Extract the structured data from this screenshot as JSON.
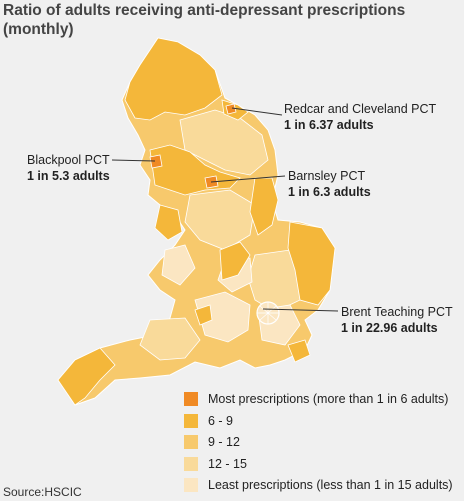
{
  "title": "Ratio of adults receiving anti-depressant prescriptions (monthly)",
  "colors": {
    "most": "#f08a24",
    "band_6_9": "#f4b73a",
    "band_9_12": "#f7c96c",
    "band_12_15": "#f9da9a",
    "least": "#fbe6c2",
    "border": "#ffffff",
    "leader": "#333333"
  },
  "callouts": [
    {
      "name": "Redcar and Cleveland PCT",
      "value": "1 in 6.37 adults"
    },
    {
      "name": "Blackpool PCT",
      "value": "1 in 5.3 adults"
    },
    {
      "name": "Barnsley PCT",
      "value": "1 in 6.3 adults"
    },
    {
      "name": "Brent Teaching PCT",
      "value": "1 in 22.96 adults"
    }
  ],
  "legend": [
    {
      "label": "Most prescriptions (more than 1 in 6 adults)",
      "color": "#f08a24"
    },
    {
      "label": "6 - 9",
      "color": "#f4b73a"
    },
    {
      "label": "9 - 12",
      "color": "#f7c96c"
    },
    {
      "label": "12 - 15",
      "color": "#f9da9a"
    },
    {
      "label": "Least prescriptions (less than 1 in 15 adults)",
      "color": "#fbe6c2"
    }
  ],
  "source": "Source:HSCIC"
}
